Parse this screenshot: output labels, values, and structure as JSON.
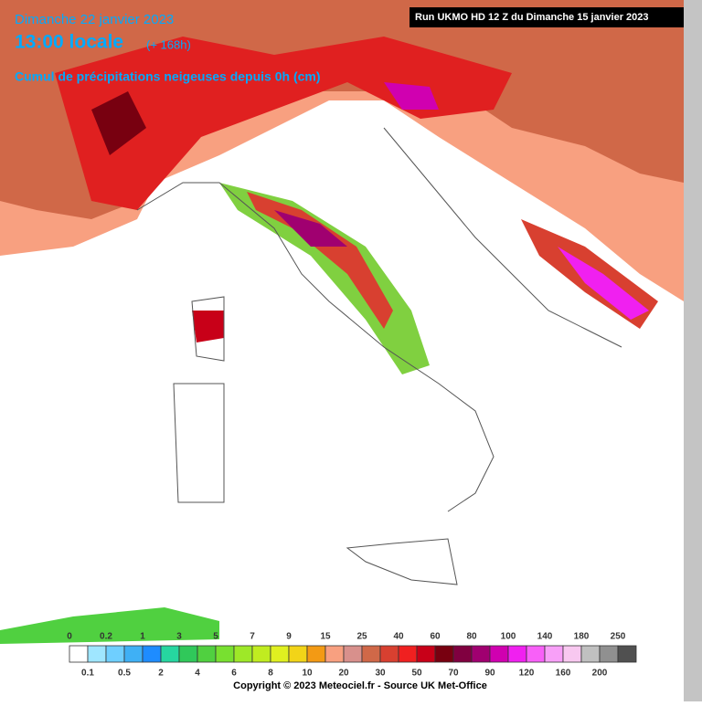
{
  "header": {
    "date": "Dimanche 22 janvier 2023",
    "time": "13:00 locale",
    "lead": "(+ 168h)",
    "product": "Cumul de précipitations neigeuses depuis 0h (cm)",
    "run": "Run UKMO HD 12 Z du Dimanche 15 janvier 2023"
  },
  "legend": {
    "ticks": [
      0,
      0.1,
      0.2,
      0.5,
      1,
      2,
      3,
      4,
      5,
      6,
      7,
      8,
      9,
      10,
      15,
      20,
      25,
      30,
      40,
      50,
      60,
      70,
      80,
      90,
      100,
      120,
      140,
      160,
      180,
      200,
      250
    ],
    "colors": [
      "#ffffff",
      "#9fe6ff",
      "#6fcfff",
      "#3fb0f5",
      "#1e8cff",
      "#26d6a0",
      "#30c85a",
      "#50d040",
      "#78e030",
      "#9ee828",
      "#c0ec20",
      "#e0f020",
      "#f2d418",
      "#f39a14",
      "#f8a080",
      "#d8908c",
      "#d06848",
      "#d84030",
      "#f02020",
      "#c80018",
      "#780010",
      "#800040",
      "#a00070",
      "#d000b0",
      "#f020f0",
      "#f860f8",
      "#f8a0f8",
      "#f8c8f0",
      "#c0c0c0",
      "#909090",
      "#505050"
    ]
  },
  "footer": {
    "copyright": "Copyright © 2023 Meteociel.fr - Source UK Met-Office"
  }
}
